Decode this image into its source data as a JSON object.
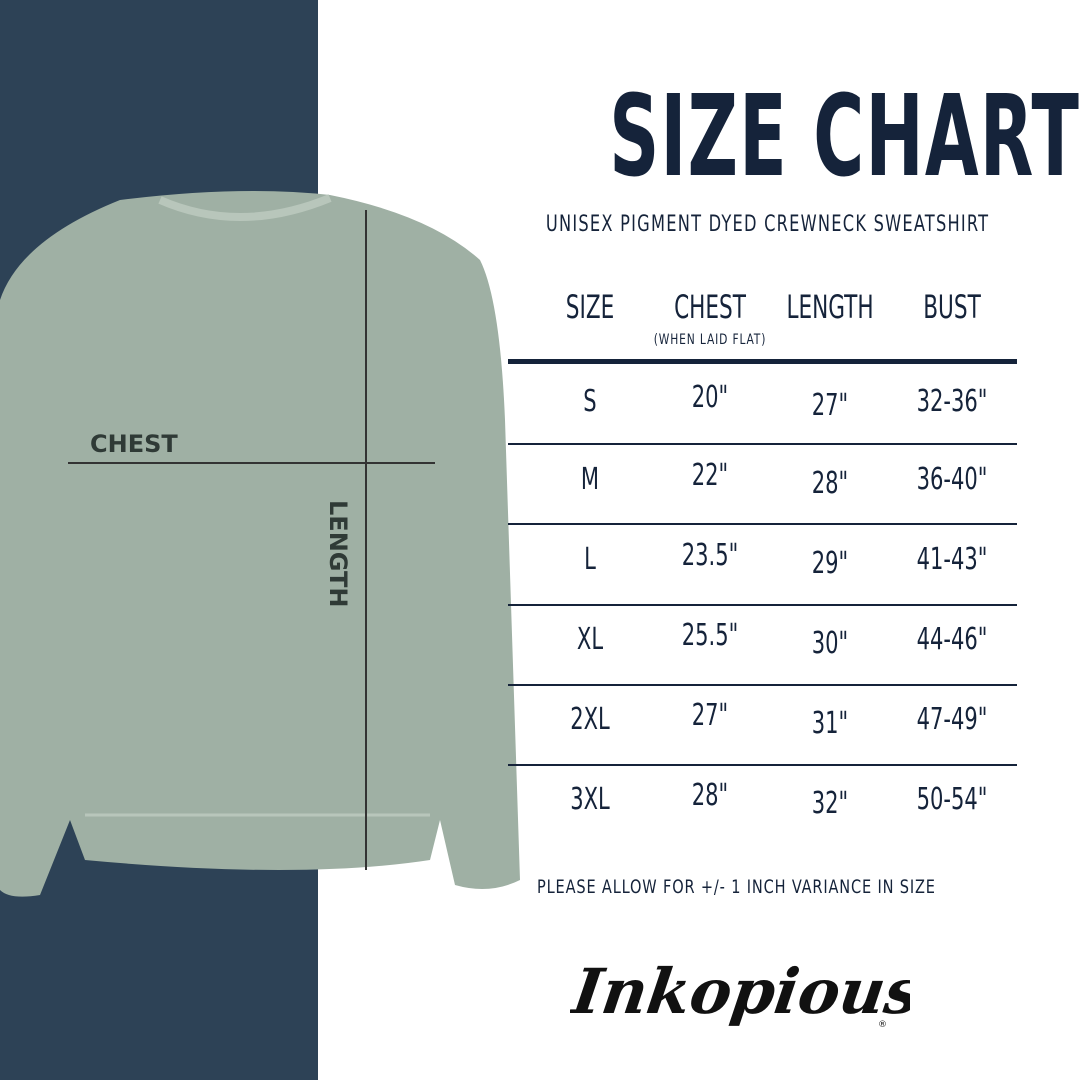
{
  "title": "SIZE CHART",
  "subtitle": "UNISEX PIGMENT DYED CREWNECK SWEATSHIRT",
  "diagram": {
    "chest_label": "CHEST",
    "length_label": "LENGTH",
    "shirt_color": "#9fb0a4",
    "panel_color": "#2d4256"
  },
  "table": {
    "headers": [
      "SIZE",
      "CHEST",
      "LENGTH",
      "BUST"
    ],
    "chest_note": "(WHEN LAID FLAT)",
    "rows": [
      [
        "S",
        "20\"",
        "27\"",
        "32-36\""
      ],
      [
        "M",
        "22\"",
        "28\"",
        "36-40\""
      ],
      [
        "L",
        "23.5\"",
        "29\"",
        "41-43\""
      ],
      [
        "XL",
        "25.5\"",
        "30\"",
        "44-46\""
      ],
      [
        "2XL",
        "27\"",
        "31\"",
        "47-49\""
      ],
      [
        "3XL",
        "28\"",
        "32\"",
        "50-54\""
      ]
    ]
  },
  "note": "PLEASE ALLOW FOR +/- 1 INCH VARIANCE IN SIZE",
  "logo": "Inkopious"
}
